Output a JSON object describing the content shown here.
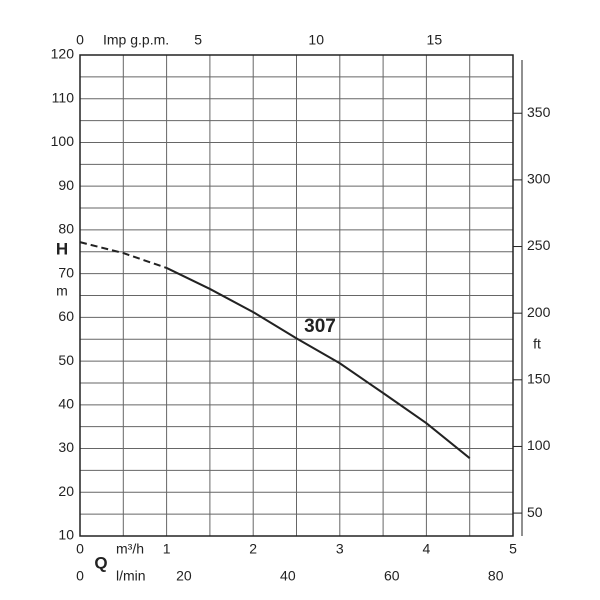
{
  "chart_data": {
    "type": "line",
    "curve_label": "307",
    "y_label": "H",
    "y_unit": "m",
    "y2_unit": "ft",
    "x_label": "Q",
    "x_unit": "m³/h",
    "x2_unit": "l/min",
    "x3_unit": "Imp g.p.m.",
    "x": [
      0,
      0.5,
      1,
      1.5,
      2,
      2.5,
      3,
      3.5,
      4,
      4.5
    ],
    "series": [
      {
        "line_style": "dashed",
        "color": "#222",
        "values": [
          77.2,
          74.7,
          71.3,
          null,
          null,
          null,
          null,
          null,
          null,
          null
        ]
      },
      {
        "name": "307",
        "line_style": "solid",
        "color": "#222",
        "values": [
          null,
          null,
          71.3,
          66.5,
          61.2,
          55.2,
          49.5,
          42.7,
          35.8,
          27.8
        ]
      }
    ],
    "xlim": [
      0,
      5
    ],
    "xticks": [
      0,
      1,
      2,
      3,
      4,
      5
    ],
    "x_minor_ticks": [
      0.5,
      1.5,
      2.5,
      3.5,
      4.5
    ],
    "ylim": [
      10,
      120
    ],
    "yticks": [
      10,
      20,
      30,
      40,
      50,
      60,
      70,
      80,
      90,
      100,
      110,
      120
    ],
    "y_minor_ticks": [
      15,
      25,
      35,
      45,
      55,
      65,
      75,
      85,
      95,
      105,
      115
    ],
    "y2lim": [
      32.81,
      393.7
    ],
    "y2ticks": [
      50,
      100,
      150,
      200,
      250,
      300,
      350
    ],
    "x2lim": [
      0,
      83.33
    ],
    "x2ticks": [
      0,
      20,
      40,
      60,
      80
    ],
    "x3lim": [
      0,
      18.33
    ],
    "x3ticks": [
      0,
      5,
      10,
      15
    ],
    "grid": true
  }
}
